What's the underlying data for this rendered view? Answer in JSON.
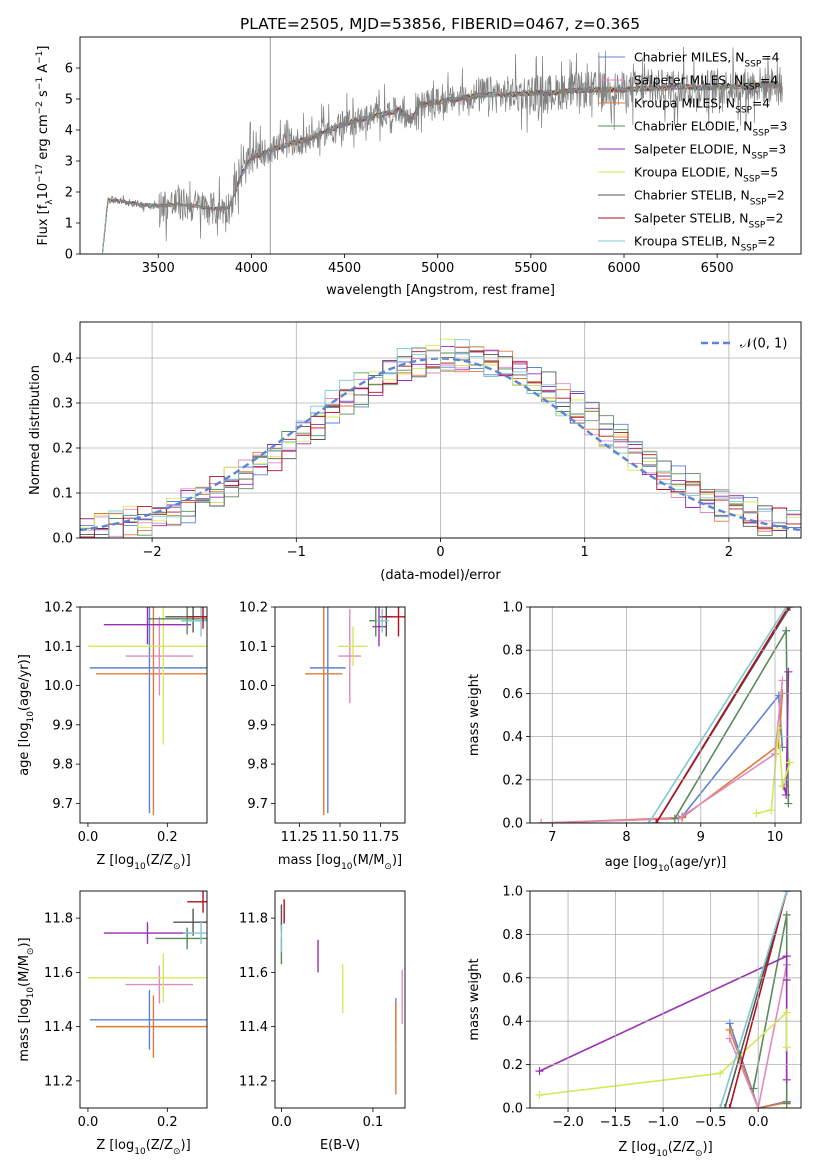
{
  "title": "PLATE=2505, MJD=53856, FIBERID=0467, z=0.365",
  "colors": {
    "chabrier_miles": "#5b84d6",
    "salpeter_miles": "#e08ac0",
    "kroupa_miles": "#e07b39",
    "chabrier_elodie": "#5a8a5a",
    "salpeter_elodie": "#9a2fb0",
    "kroupa_elodie": "#d4e85a",
    "chabrier_stelib": "#555555",
    "salpeter_stelib": "#b01020",
    "kroupa_stelib": "#7fc9cc",
    "data_flux": "#808080",
    "grid": "#b0b0b0"
  },
  "legend_models": [
    {
      "label": "Chabrier MILES, N",
      "sub": "SSP",
      "suffix": "=4",
      "color_key": "chabrier_miles"
    },
    {
      "label": "Salpeter MILES, N",
      "sub": "SSP",
      "suffix": "=4",
      "color_key": "salpeter_miles"
    },
    {
      "label": "Kroupa MILES, N",
      "sub": "SSP",
      "suffix": "=4",
      "color_key": "kroupa_miles"
    },
    {
      "label": "Chabrier ELODIE, N",
      "sub": "SSP",
      "suffix": "=3",
      "color_key": "chabrier_elodie"
    },
    {
      "label": "Salpeter ELODIE, N",
      "sub": "SSP",
      "suffix": "=3",
      "color_key": "salpeter_elodie"
    },
    {
      "label": "Kroupa ELODIE, N",
      "sub": "SSP",
      "suffix": "=5",
      "color_key": "kroupa_elodie"
    },
    {
      "label": "Chabrier STELIB, N",
      "sub": "SSP",
      "suffix": "=2",
      "color_key": "chabrier_stelib"
    },
    {
      "label": "Salpeter STELIB, N",
      "sub": "SSP",
      "suffix": "=2",
      "color_key": "salpeter_stelib"
    },
    {
      "label": "Kroupa STELIB, N",
      "sub": "SSP",
      "suffix": "=2",
      "color_key": "kroupa_stelib"
    }
  ],
  "chart_data": [
    {
      "id": "spectrum",
      "type": "line",
      "xlabel": "wavelength [Angstrom, rest frame]",
      "ylabel": "Flux [f",
      "ylabel_sub": "λ",
      "ylabel_tail": "10",
      "ylabel_sup": "−17",
      "ylabel_end": " erg cm",
      "xlim": [
        3080,
        6950
      ],
      "ylim": [
        0,
        7.0
      ],
      "xticks": [
        3500,
        4000,
        4500,
        5000,
        5500,
        6000,
        6500
      ],
      "yticks": [
        0,
        1,
        2,
        3,
        4,
        5,
        6
      ],
      "grid": false,
      "legend": "right",
      "continuum": {
        "x": [
          3200,
          3230,
          3300,
          3400,
          3500,
          3600,
          3700,
          3800,
          3880,
          3950,
          4000,
          4100,
          4200,
          4300,
          4400,
          4500,
          4600,
          4700,
          4800,
          4860,
          4900,
          5000,
          5100,
          5200,
          5300,
          5400,
          5500,
          5600,
          5700,
          5800,
          5900,
          6000,
          6100,
          6200,
          6300,
          6400,
          6500,
          6600,
          6700,
          6850
        ],
        "y": [
          0,
          1.75,
          1.7,
          1.6,
          1.55,
          1.6,
          1.55,
          1.45,
          1.5,
          2.6,
          3.1,
          3.35,
          3.55,
          3.7,
          3.95,
          4.2,
          4.35,
          4.5,
          4.65,
          4.3,
          4.8,
          4.9,
          5.0,
          5.1,
          5.15,
          5.15,
          5.2,
          5.2,
          5.25,
          5.3,
          5.3,
          5.3,
          5.35,
          5.35,
          5.4,
          5.35,
          5.4,
          5.4,
          5.45,
          5.45
        ]
      }
    },
    {
      "id": "residuals",
      "type": "line",
      "xlabel": "(data-model)/error",
      "ylabel": "Normed distribution",
      "xlim": [
        -2.5,
        2.5
      ],
      "ylim": [
        0,
        0.48
      ],
      "xticks": [
        -2,
        -1,
        0,
        1,
        2
      ],
      "yticks": [
        0.0,
        0.1,
        0.2,
        0.3,
        0.4
      ],
      "grid": true,
      "legend": "top-right",
      "legend_label": "𝒩(0, 1)",
      "gaussian": {
        "mu": 0,
        "sigma": 1
      }
    },
    {
      "id": "age_vs_Z",
      "type": "scatter",
      "xlabel": "Z [log",
      "xlabel_sub": "10",
      "xlabel_tail": "(Z/Z",
      "xlabel_sub2": "⊙",
      "xlabel_end": ")]",
      "ylabel": "age  [log",
      "ylabel_sub": "10",
      "ylabel_end": "(age/yr)]",
      "xlim": [
        -0.02,
        0.3
      ],
      "ylim": [
        9.65,
        10.2
      ],
      "xticks": [
        0.0,
        0.2
      ],
      "yticks": [
        9.7,
        9.8,
        9.9,
        10.0,
        10.1,
        10.2
      ],
      "errorbars": [
        {
          "c": "chabrier_miles",
          "x": 0.155,
          "xe": 0.15,
          "y": 10.045,
          "ye": 0.37
        },
        {
          "c": "kroupa_miles",
          "x": 0.165,
          "xe": 0.145,
          "y": 10.03,
          "ye": 0.36
        },
        {
          "c": "salpeter_miles",
          "x": 0.18,
          "xe": 0.085,
          "y": 10.075,
          "ye": 0.1
        },
        {
          "c": "kroupa_elodie",
          "x": 0.19,
          "xe": 0.19,
          "y": 10.1,
          "ye": 0.25
        },
        {
          "c": "salpeter_elodie",
          "x": 0.15,
          "xe": 0.11,
          "y": 10.155,
          "ye": 0.05
        },
        {
          "c": "chabrier_elodie",
          "x": 0.25,
          "xe": 0.1,
          "y": 10.17,
          "ye": 0.04
        },
        {
          "c": "chabrier_stelib",
          "x": 0.265,
          "xe": 0.07,
          "y": 10.175,
          "ye": 0.04
        },
        {
          "c": "kroupa_stelib",
          "x": 0.285,
          "xe": 0.05,
          "y": 10.165,
          "ye": 0.04
        },
        {
          "c": "salpeter_stelib",
          "x": 0.29,
          "xe": 0.04,
          "y": 10.175,
          "ye": 0.03
        }
      ]
    },
    {
      "id": "age_vs_mass",
      "type": "scatter",
      "xlabel": "mass [log",
      "xlabel_sub": "10",
      "xlabel_tail": "(M/M",
      "xlabel_sub2": "⊙",
      "xlabel_end": ")]",
      "xlim": [
        11.1,
        11.9
      ],
      "ylim": [
        9.65,
        10.2
      ],
      "xticks": [
        11.25,
        11.5,
        11.75
      ],
      "yticks": [
        9.7,
        9.8,
        9.9,
        10.0,
        10.1,
        10.2
      ],
      "errorbars": [
        {
          "c": "chabrier_miles",
          "x": 11.425,
          "xe": 0.11,
          "y": 10.045,
          "ye": 0.37
        },
        {
          "c": "kroupa_miles",
          "x": 11.4,
          "xe": 0.115,
          "y": 10.03,
          "ye": 0.36
        },
        {
          "c": "salpeter_miles",
          "x": 11.56,
          "xe": 0.07,
          "y": 10.075,
          "ye": 0.12
        },
        {
          "c": "kroupa_elodie",
          "x": 11.58,
          "xe": 0.09,
          "y": 10.1,
          "ye": 0.05
        },
        {
          "c": "salpeter_elodie",
          "x": 11.74,
          "xe": 0.04,
          "y": 10.15,
          "ye": 0.05
        },
        {
          "c": "chabrier_elodie",
          "x": 11.72,
          "xe": 0.04,
          "y": 10.165,
          "ye": 0.04
        },
        {
          "c": "chabrier_stelib",
          "x": 11.785,
          "xe": 0.04,
          "y": 10.175,
          "ye": 0.05
        },
        {
          "c": "kroupa_stelib",
          "x": 11.76,
          "xe": 0.04,
          "y": 10.165,
          "ye": 0.03
        },
        {
          "c": "salpeter_stelib",
          "x": 11.86,
          "xe": 0.1,
          "y": 10.175,
          "ye": 0.05
        }
      ]
    },
    {
      "id": "weight_vs_age",
      "type": "line",
      "xlabel": "age  [log",
      "xlabel_sub": "10",
      "xlabel_end": "(age/yr)]",
      "ylabel": "mass weight",
      "xlim": [
        6.7,
        10.35
      ],
      "ylim": [
        0,
        1.0
      ],
      "xticks": [
        7,
        8,
        9,
        10
      ],
      "yticks": [
        0.0,
        0.2,
        0.4,
        0.6,
        0.8,
        1.0
      ],
      "grid": true,
      "series": [
        {
          "c": "chabrier_miles",
          "x": [
            8.75,
            10.05,
            10.1
          ],
          "y": [
            0.03,
            0.59,
            0.35
          ]
        },
        {
          "c": "kroupa_miles",
          "x": [
            6.85,
            8.75,
            10.05,
            10.1
          ],
          "y": [
            0.0,
            0.025,
            0.36,
            0.6
          ]
        },
        {
          "c": "salpeter_miles",
          "x": [
            6.85,
            8.7,
            10.0,
            10.1
          ],
          "y": [
            0.0,
            0.02,
            0.32,
            0.66
          ]
        },
        {
          "c": "chabrier_elodie",
          "x": [
            8.65,
            10.15,
            10.18
          ],
          "y": [
            0.02,
            0.89,
            0.09
          ]
        },
        {
          "c": "salpeter_elodie",
          "x": [
            10.12,
            10.15,
            10.18
          ],
          "y": [
            0.17,
            0.13,
            0.7
          ]
        },
        {
          "c": "kroupa_elodie",
          "x": [
            9.75,
            9.95,
            10.05,
            10.1,
            10.2
          ],
          "y": [
            0.045,
            0.06,
            0.44,
            0.17,
            0.28
          ]
        },
        {
          "c": "chabrier_stelib",
          "x": [
            8.4,
            10.2
          ],
          "y": [
            0.0,
            1.0
          ]
        },
        {
          "c": "salpeter_stelib",
          "x": [
            8.4,
            10.18
          ],
          "y": [
            0.0,
            1.0
          ]
        },
        {
          "c": "kroupa_stelib",
          "x": [
            8.3,
            10.15
          ],
          "y": [
            0.0,
            1.0
          ]
        }
      ]
    },
    {
      "id": "mass_vs_Z",
      "type": "scatter",
      "xlabel": "Z [log",
      "xlabel_sub": "10",
      "xlabel_tail": "(Z/Z",
      "xlabel_sub2": "⊙",
      "xlabel_end": ")]",
      "ylabel": "mass [log",
      "ylabel_sub": "10",
      "ylabel_tail": "(M/M",
      "ylabel_sub2": "⊙",
      "ylabel_end": ")]",
      "xlim": [
        -0.02,
        0.3
      ],
      "ylim": [
        11.1,
        11.9
      ],
      "xticks": [
        0.0,
        0.2
      ],
      "yticks": [
        11.2,
        11.4,
        11.6,
        11.8
      ],
      "errorbars": [
        {
          "c": "chabrier_miles",
          "x": 0.155,
          "xe": 0.15,
          "y": 11.425,
          "ye": 0.11
        },
        {
          "c": "kroupa_miles",
          "x": 0.165,
          "xe": 0.145,
          "y": 11.4,
          "ye": 0.115
        },
        {
          "c": "salpeter_miles",
          "x": 0.18,
          "xe": 0.085,
          "y": 11.555,
          "ye": 0.07
        },
        {
          "c": "kroupa_elodie",
          "x": 0.19,
          "xe": 0.19,
          "y": 11.58,
          "ye": 0.09
        },
        {
          "c": "salpeter_elodie",
          "x": 0.15,
          "xe": 0.11,
          "y": 11.745,
          "ye": 0.04
        },
        {
          "c": "chabrier_elodie",
          "x": 0.25,
          "xe": 0.08,
          "y": 11.725,
          "ye": 0.04
        },
        {
          "c": "chabrier_stelib",
          "x": 0.265,
          "xe": 0.05,
          "y": 11.785,
          "ye": 0.05
        },
        {
          "c": "kroupa_stelib",
          "x": 0.285,
          "xe": 0.045,
          "y": 11.745,
          "ye": 0.04
        },
        {
          "c": "salpeter_stelib",
          "x": 0.29,
          "xe": 0.04,
          "y": 11.86,
          "ye": 0.04
        }
      ]
    },
    {
      "id": "mass_vs_ebv",
      "type": "scatter",
      "xlabel": "E(B-V)",
      "xlim": [
        -0.007,
        0.135
      ],
      "ylim": [
        11.1,
        11.9
      ],
      "xticks": [
        0.0,
        0.1
      ],
      "yticks": [
        11.2,
        11.4,
        11.6,
        11.8
      ],
      "errorbars": [
        {
          "c": "chabrier_miles",
          "x": 0.125,
          "xe": 0,
          "y": 11.425,
          "ye": 0.08
        },
        {
          "c": "kroupa_miles",
          "x": 0.125,
          "xe": 0,
          "y": 11.32,
          "ye": 0.17
        },
        {
          "c": "salpeter_miles",
          "x": 0.132,
          "xe": 0,
          "y": 11.51,
          "ye": 0.1
        },
        {
          "c": "kroupa_elodie",
          "x": 0.067,
          "xe": 0,
          "y": 11.54,
          "ye": 0.09
        },
        {
          "c": "salpeter_elodie",
          "x": 0.04,
          "xe": 0,
          "y": 11.66,
          "ye": 0.06
        },
        {
          "c": "chabrier_elodie",
          "x": 0.0,
          "xe": 0,
          "y": 11.68,
          "ye": 0.05
        },
        {
          "c": "chabrier_stelib",
          "x": 0.0,
          "xe": 0,
          "y": 11.8,
          "ye": 0.05
        },
        {
          "c": "kroupa_stelib",
          "x": 0.0,
          "xe": 0,
          "y": 11.725,
          "ye": 0.05
        },
        {
          "c": "salpeter_stelib",
          "x": 0.003,
          "xe": 0,
          "y": 11.825,
          "ye": 0.045
        }
      ]
    },
    {
      "id": "weight_vs_Z",
      "type": "line",
      "xlabel": "Z [log",
      "xlabel_sub": "10",
      "xlabel_tail": "(Z/Z",
      "xlabel_sub2": "⊙",
      "xlabel_end": ")]",
      "ylabel": "mass weight",
      "xlim": [
        -2.4,
        0.45
      ],
      "ylim": [
        0,
        1.0
      ],
      "xticks": [
        -2.0,
        -1.5,
        -1.0,
        -0.5,
        0.0
      ],
      "yticks": [
        0.0,
        0.2,
        0.4,
        0.6,
        0.8,
        1.0
      ],
      "grid": true,
      "series": [
        {
          "c": "chabrier_miles",
          "x": [
            -0.3,
            0.0,
            0.3
          ],
          "y": [
            0.39,
            0.0,
            0.03
          ]
        },
        {
          "c": "kroupa_miles",
          "x": [
            -0.3,
            0.0,
            0.3
          ],
          "y": [
            0.36,
            0.0,
            0.025
          ]
        },
        {
          "c": "salpeter_miles",
          "x": [
            -0.3,
            0.0,
            0.3
          ],
          "y": [
            0.32,
            0.0,
            0.66
          ]
        },
        {
          "c": "chabrier_elodie",
          "x": [
            -0.05,
            0.3,
            0.3
          ],
          "y": [
            0.09,
            0.89,
            0.02
          ]
        },
        {
          "c": "salpeter_elodie",
          "x": [
            -2.3,
            0.3,
            0.3,
            0.3
          ],
          "y": [
            0.17,
            0.7,
            0.13,
            0.59
          ]
        },
        {
          "c": "kroupa_elodie",
          "x": [
            -2.3,
            -0.4,
            0.3,
            0.3
          ],
          "y": [
            0.06,
            0.16,
            0.44,
            0.28
          ]
        },
        {
          "c": "chabrier_stelib",
          "x": [
            -0.35,
            0.3
          ],
          "y": [
            0.0,
            1.0
          ]
        },
        {
          "c": "salpeter_stelib",
          "x": [
            -0.3,
            0.3
          ],
          "y": [
            0.0,
            1.0
          ]
        },
        {
          "c": "kroupa_stelib",
          "x": [
            -0.4,
            0.3
          ],
          "y": [
            0.0,
            1.0
          ]
        }
      ]
    }
  ]
}
